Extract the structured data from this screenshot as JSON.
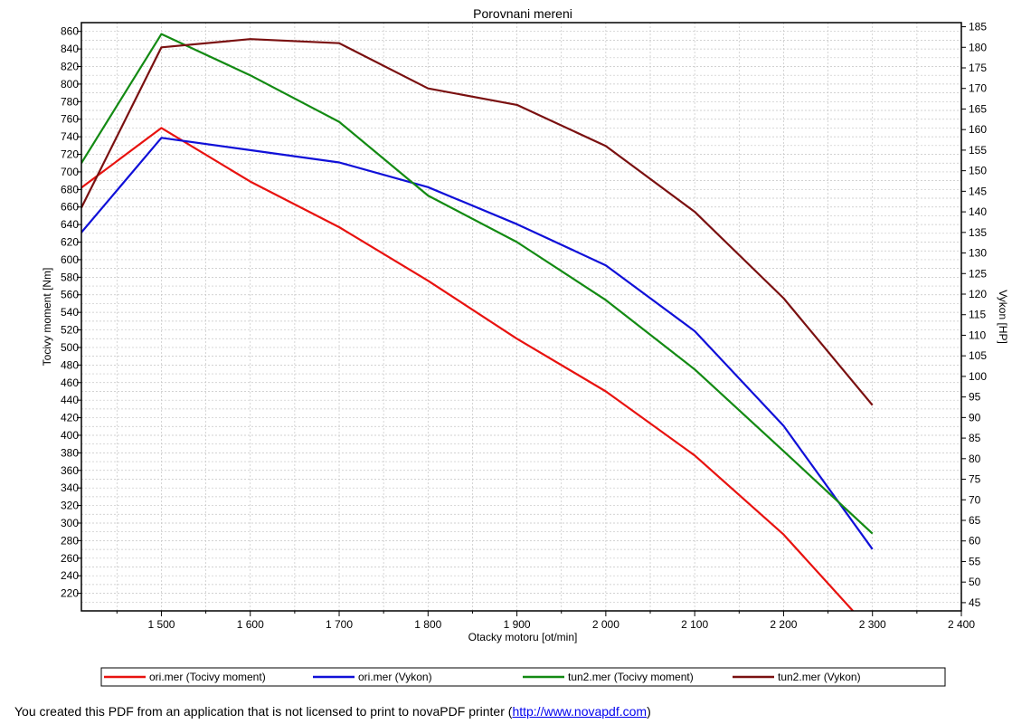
{
  "footer": {
    "prefix": "You created this PDF from an application that is not licensed to print to novaPDF printer (",
    "link_text": "http://www.novapdf.com",
    "suffix": ")"
  },
  "chart_data": {
    "type": "line",
    "title": "Porovnani mereni",
    "xlabel": "Otacky motoru [ot/min]",
    "ylabel_left": "Tocivy moment [Nm]",
    "ylabel_right": "Vykon [HP]",
    "xlim": [
      1410,
      2400
    ],
    "ylim_left": [
      200,
      870
    ],
    "ylim_right": [
      43,
      186
    ],
    "x_ticks": [
      1500,
      1600,
      1700,
      1800,
      1900,
      2000,
      2100,
      2200,
      2300,
      2400
    ],
    "x_tick_labels": [
      "1 500",
      "1 600",
      "1 700",
      "1 800",
      "1 900",
      "2 000",
      "2 100",
      "2 200",
      "2 300",
      "2 400"
    ],
    "y_left_ticks": [
      220,
      240,
      260,
      280,
      300,
      320,
      340,
      360,
      380,
      400,
      420,
      440,
      460,
      480,
      500,
      520,
      540,
      560,
      580,
      600,
      620,
      640,
      660,
      680,
      700,
      720,
      740,
      760,
      780,
      800,
      820,
      840,
      860
    ],
    "y_right_ticks": [
      45,
      50,
      55,
      60,
      65,
      70,
      75,
      80,
      85,
      90,
      95,
      100,
      105,
      110,
      115,
      120,
      125,
      130,
      135,
      140,
      145,
      150,
      155,
      160,
      165,
      170,
      175,
      180,
      185
    ],
    "grid": true,
    "legend_position": "bottom",
    "series": [
      {
        "name": "ori.mer  (Tocivy moment)",
        "axis": "left",
        "color": "#e8120f",
        "x": [
          1410,
          1500,
          1600,
          1700,
          1800,
          1900,
          2000,
          2100,
          2200,
          2278
        ],
        "y": [
          682,
          750,
          689,
          637,
          576,
          510,
          450,
          377,
          287,
          200
        ]
      },
      {
        "name": "ori.mer  (Vykon)",
        "axis": "right",
        "color": "#1010d8",
        "x": [
          1410,
          1500,
          1600,
          1700,
          1800,
          1900,
          2000,
          2100,
          2200,
          2300
        ],
        "y": [
          135,
          158,
          155,
          152,
          146,
          137,
          127,
          111,
          88,
          58
        ]
      },
      {
        "name": "tun2.mer  (Tocivy moment)",
        "axis": "left",
        "color": "#138a13",
        "x": [
          1410,
          1500,
          1600,
          1700,
          1800,
          1900,
          2000,
          2100,
          2200,
          2300
        ],
        "y": [
          710,
          857,
          810,
          757,
          673,
          620,
          554,
          475,
          382,
          288
        ]
      },
      {
        "name": "tun2.mer  (Vykon)",
        "axis": "right",
        "color": "#7a1010",
        "x": [
          1410,
          1500,
          1600,
          1700,
          1800,
          1900,
          2000,
          2100,
          2200,
          2300
        ],
        "y": [
          141,
          180,
          182,
          181,
          170,
          166,
          156,
          140,
          119,
          93
        ]
      }
    ]
  }
}
